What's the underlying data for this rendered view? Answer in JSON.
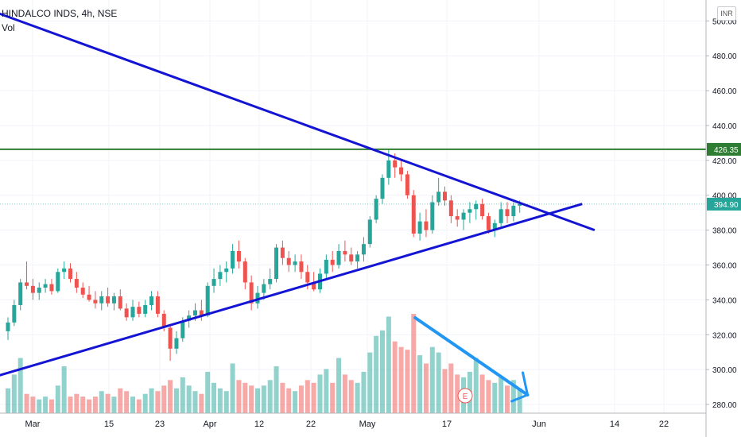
{
  "header": {
    "symbol": "HINDALCO INDS, 4h, NSE",
    "vol_label": "Vol",
    "currency": "INR"
  },
  "colors": {
    "up": "#26a69a",
    "down": "#ef5350",
    "trend_line": "#1414d4",
    "resistance": "#2e7d32",
    "arrow": "#2196f3"
  },
  "chart_data": {
    "type": "candlestick",
    "title": "",
    "y_axis": {
      "range": [
        275,
        512
      ],
      "ticks": [
        280,
        300,
        320,
        340,
        360,
        380,
        400,
        420,
        440,
        460,
        480,
        500
      ],
      "tick_labels": [
        "280.00",
        "300.00",
        "320.00",
        "340.00",
        "360.00",
        "380.00",
        "400.00",
        "420.00",
        "440.00",
        "460.00",
        "480.00",
        "500.00"
      ]
    },
    "x_axis": {
      "labels": [
        "Mar",
        "15",
        "23",
        "Apr",
        "12",
        "22",
        "May",
        "17",
        "Jun",
        "14",
        "22"
      ],
      "range_index": [
        0,
        96
      ]
    },
    "price_labels": [
      {
        "text": "426.35",
        "value": 426.35,
        "color": "#2e7d32"
      },
      {
        "text": "394.90",
        "value": 394.9,
        "color": "#26a69a"
      }
    ],
    "candles": [
      {
        "o": 322,
        "h": 330,
        "l": 317,
        "c": 327
      },
      {
        "o": 327,
        "h": 340,
        "l": 325,
        "c": 337
      },
      {
        "o": 337,
        "h": 352,
        "l": 334,
        "c": 350
      },
      {
        "o": 350,
        "h": 362,
        "l": 346,
        "c": 348
      },
      {
        "o": 348,
        "h": 352,
        "l": 340,
        "c": 344
      },
      {
        "o": 344,
        "h": 350,
        "l": 340,
        "c": 347
      },
      {
        "o": 347,
        "h": 352,
        "l": 344,
        "c": 349
      },
      {
        "o": 349,
        "h": 352,
        "l": 343,
        "c": 345
      },
      {
        "o": 345,
        "h": 358,
        "l": 344,
        "c": 356
      },
      {
        "o": 356,
        "h": 362,
        "l": 352,
        "c": 358
      },
      {
        "o": 358,
        "h": 361,
        "l": 350,
        "c": 352
      },
      {
        "o": 352,
        "h": 356,
        "l": 344,
        "c": 347
      },
      {
        "o": 347,
        "h": 350,
        "l": 341,
        "c": 343
      },
      {
        "o": 343,
        "h": 348,
        "l": 339,
        "c": 340
      },
      {
        "o": 340,
        "h": 345,
        "l": 335,
        "c": 338
      },
      {
        "o": 338,
        "h": 345,
        "l": 334,
        "c": 342
      },
      {
        "o": 342,
        "h": 347,
        "l": 336,
        "c": 338
      },
      {
        "o": 338,
        "h": 344,
        "l": 334,
        "c": 342
      },
      {
        "o": 342,
        "h": 346,
        "l": 334,
        "c": 335
      },
      {
        "o": 335,
        "h": 338,
        "l": 328,
        "c": 330
      },
      {
        "o": 330,
        "h": 340,
        "l": 328,
        "c": 336
      },
      {
        "o": 336,
        "h": 339,
        "l": 330,
        "c": 332
      },
      {
        "o": 332,
        "h": 340,
        "l": 330,
        "c": 337
      },
      {
        "o": 337,
        "h": 345,
        "l": 334,
        "c": 342
      },
      {
        "o": 342,
        "h": 345,
        "l": 330,
        "c": 332
      },
      {
        "o": 332,
        "h": 334,
        "l": 322,
        "c": 324
      },
      {
        "o": 324,
        "h": 326,
        "l": 305,
        "c": 312
      },
      {
        "o": 312,
        "h": 322,
        "l": 309,
        "c": 318
      },
      {
        "o": 318,
        "h": 330,
        "l": 316,
        "c": 328
      },
      {
        "o": 328,
        "h": 334,
        "l": 324,
        "c": 331
      },
      {
        "o": 331,
        "h": 338,
        "l": 328,
        "c": 334
      },
      {
        "o": 334,
        "h": 340,
        "l": 328,
        "c": 331
      },
      {
        "o": 331,
        "h": 350,
        "l": 330,
        "c": 348
      },
      {
        "o": 348,
        "h": 358,
        "l": 344,
        "c": 352
      },
      {
        "o": 352,
        "h": 360,
        "l": 348,
        "c": 356
      },
      {
        "o": 356,
        "h": 362,
        "l": 350,
        "c": 358
      },
      {
        "o": 358,
        "h": 372,
        "l": 355,
        "c": 368
      },
      {
        "o": 368,
        "h": 374,
        "l": 358,
        "c": 362
      },
      {
        "o": 362,
        "h": 364,
        "l": 346,
        "c": 350
      },
      {
        "o": 350,
        "h": 354,
        "l": 334,
        "c": 338
      },
      {
        "o": 338,
        "h": 348,
        "l": 335,
        "c": 344
      },
      {
        "o": 344,
        "h": 352,
        "l": 340,
        "c": 349
      },
      {
        "o": 349,
        "h": 358,
        "l": 346,
        "c": 352
      },
      {
        "o": 352,
        "h": 372,
        "l": 350,
        "c": 370
      },
      {
        "o": 370,
        "h": 374,
        "l": 360,
        "c": 364
      },
      {
        "o": 364,
        "h": 368,
        "l": 356,
        "c": 360
      },
      {
        "o": 360,
        "h": 366,
        "l": 356,
        "c": 362
      },
      {
        "o": 362,
        "h": 366,
        "l": 352,
        "c": 356
      },
      {
        "o": 356,
        "h": 360,
        "l": 346,
        "c": 350
      },
      {
        "o": 350,
        "h": 356,
        "l": 345,
        "c": 346
      },
      {
        "o": 346,
        "h": 358,
        "l": 344,
        "c": 355
      },
      {
        "o": 355,
        "h": 366,
        "l": 352,
        "c": 363
      },
      {
        "o": 363,
        "h": 368,
        "l": 356,
        "c": 360
      },
      {
        "o": 360,
        "h": 372,
        "l": 358,
        "c": 368
      },
      {
        "o": 368,
        "h": 374,
        "l": 362,
        "c": 366
      },
      {
        "o": 366,
        "h": 370,
        "l": 360,
        "c": 362
      },
      {
        "o": 362,
        "h": 368,
        "l": 358,
        "c": 366
      },
      {
        "o": 366,
        "h": 376,
        "l": 362,
        "c": 372
      },
      {
        "o": 372,
        "h": 388,
        "l": 370,
        "c": 386
      },
      {
        "o": 386,
        "h": 400,
        "l": 384,
        "c": 398
      },
      {
        "o": 398,
        "h": 412,
        "l": 395,
        "c": 410
      },
      {
        "o": 410,
        "h": 426,
        "l": 406,
        "c": 420
      },
      {
        "o": 420,
        "h": 424,
        "l": 410,
        "c": 416
      },
      {
        "o": 416,
        "h": 420,
        "l": 408,
        "c": 412
      },
      {
        "o": 412,
        "h": 414,
        "l": 398,
        "c": 400
      },
      {
        "o": 400,
        "h": 403,
        "l": 376,
        "c": 378
      },
      {
        "o": 378,
        "h": 390,
        "l": 374,
        "c": 385
      },
      {
        "o": 385,
        "h": 392,
        "l": 376,
        "c": 380
      },
      {
        "o": 380,
        "h": 400,
        "l": 378,
        "c": 396
      },
      {
        "o": 396,
        "h": 410,
        "l": 394,
        "c": 402
      },
      {
        "o": 402,
        "h": 405,
        "l": 394,
        "c": 397
      },
      {
        "o": 397,
        "h": 400,
        "l": 384,
        "c": 388
      },
      {
        "o": 388,
        "h": 392,
        "l": 382,
        "c": 386
      },
      {
        "o": 386,
        "h": 392,
        "l": 380,
        "c": 390
      },
      {
        "o": 390,
        "h": 396,
        "l": 384,
        "c": 392
      },
      {
        "o": 392,
        "h": 397,
        "l": 386,
        "c": 395
      },
      {
        "o": 395,
        "h": 398,
        "l": 386,
        "c": 388
      },
      {
        "o": 388,
        "h": 390,
        "l": 378,
        "c": 380
      },
      {
        "o": 380,
        "h": 386,
        "l": 376,
        "c": 384
      },
      {
        "o": 384,
        "h": 396,
        "l": 382,
        "c": 392
      },
      {
        "o": 392,
        "h": 396,
        "l": 384,
        "c": 388
      },
      {
        "o": 388,
        "h": 396,
        "l": 385,
        "c": 394
      },
      {
        "o": 394,
        "h": 397,
        "l": 390,
        "c": 394.9
      }
    ],
    "volume": [
      {
        "v": 9,
        "up": true
      },
      {
        "v": 14,
        "up": true
      },
      {
        "v": 20,
        "up": true
      },
      {
        "v": 7,
        "up": false
      },
      {
        "v": 6,
        "up": false
      },
      {
        "v": 5,
        "up": true
      },
      {
        "v": 6,
        "up": true
      },
      {
        "v": 5,
        "up": false
      },
      {
        "v": 10,
        "up": true
      },
      {
        "v": 17,
        "up": true
      },
      {
        "v": 6,
        "up": false
      },
      {
        "v": 7,
        "up": false
      },
      {
        "v": 6,
        "up": false
      },
      {
        "v": 5,
        "up": false
      },
      {
        "v": 6,
        "up": false
      },
      {
        "v": 8,
        "up": true
      },
      {
        "v": 7,
        "up": false
      },
      {
        "v": 6,
        "up": true
      },
      {
        "v": 9,
        "up": false
      },
      {
        "v": 8,
        "up": false
      },
      {
        "v": 6,
        "up": true
      },
      {
        "v": 5,
        "up": false
      },
      {
        "v": 7,
        "up": true
      },
      {
        "v": 9,
        "up": true
      },
      {
        "v": 8,
        "up": false
      },
      {
        "v": 10,
        "up": false
      },
      {
        "v": 12,
        "up": false
      },
      {
        "v": 9,
        "up": true
      },
      {
        "v": 13,
        "up": true
      },
      {
        "v": 10,
        "up": true
      },
      {
        "v": 8,
        "up": true
      },
      {
        "v": 7,
        "up": false
      },
      {
        "v": 15,
        "up": true
      },
      {
        "v": 11,
        "up": true
      },
      {
        "v": 9,
        "up": true
      },
      {
        "v": 8,
        "up": true
      },
      {
        "v": 18,
        "up": true
      },
      {
        "v": 12,
        "up": false
      },
      {
        "v": 11,
        "up": false
      },
      {
        "v": 10,
        "up": false
      },
      {
        "v": 9,
        "up": true
      },
      {
        "v": 10,
        "up": true
      },
      {
        "v": 12,
        "up": true
      },
      {
        "v": 17,
        "up": true
      },
      {
        "v": 11,
        "up": false
      },
      {
        "v": 9,
        "up": false
      },
      {
        "v": 8,
        "up": true
      },
      {
        "v": 10,
        "up": false
      },
      {
        "v": 12,
        "up": false
      },
      {
        "v": 11,
        "up": false
      },
      {
        "v": 14,
        "up": true
      },
      {
        "v": 16,
        "up": true
      },
      {
        "v": 11,
        "up": false
      },
      {
        "v": 20,
        "up": true
      },
      {
        "v": 14,
        "up": false
      },
      {
        "v": 12,
        "up": false
      },
      {
        "v": 11,
        "up": true
      },
      {
        "v": 15,
        "up": true
      },
      {
        "v": 22,
        "up": true
      },
      {
        "v": 28,
        "up": true
      },
      {
        "v": 30,
        "up": true
      },
      {
        "v": 35,
        "up": true
      },
      {
        "v": 26,
        "up": false
      },
      {
        "v": 24,
        "up": false
      },
      {
        "v": 23,
        "up": false
      },
      {
        "v": 36,
        "up": false
      },
      {
        "v": 21,
        "up": true
      },
      {
        "v": 18,
        "up": false
      },
      {
        "v": 24,
        "up": true
      },
      {
        "v": 22,
        "up": true
      },
      {
        "v": 16,
        "up": false
      },
      {
        "v": 18,
        "up": false
      },
      {
        "v": 14,
        "up": false
      },
      {
        "v": 13,
        "up": true
      },
      {
        "v": 15,
        "up": true
      },
      {
        "v": 20,
        "up": true
      },
      {
        "v": 14,
        "up": false
      },
      {
        "v": 12,
        "up": false
      },
      {
        "v": 11,
        "up": true
      },
      {
        "v": 13,
        "up": true
      },
      {
        "v": 10,
        "up": false
      },
      {
        "v": 12,
        "up": true
      },
      {
        "v": 9,
        "up": true
      }
    ],
    "drawings": {
      "upper_trendline": {
        "from": {
          "index": -2,
          "price": 505
        },
        "to": {
          "index": 94,
          "price": 380
        }
      },
      "lower_trendline": {
        "from": {
          "index": -2,
          "price": 296
        },
        "to": {
          "index": 92,
          "price": 395
        }
      },
      "resistance_line": {
        "price": 426.35
      },
      "volume_arrow": {
        "from_index": 65,
        "to_index": 83
      }
    },
    "earnings_marker": {
      "text": "E",
      "index": 73
    }
  }
}
